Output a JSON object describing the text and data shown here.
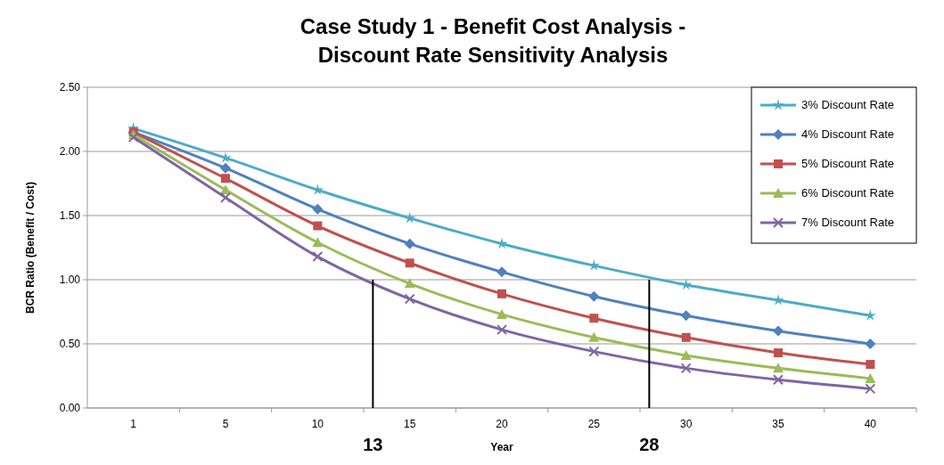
{
  "chart_data": {
    "type": "line",
    "title": "Case Study 1 - Benefit Cost Analysis -\nDiscount Rate Sensitivity Analysis",
    "xlabel": "Year",
    "ylabel": "BCR Ratio (Benefit / Cost)",
    "categories": [
      "1",
      "5",
      "10",
      "15",
      "20",
      "25",
      "30",
      "35",
      "40"
    ],
    "ylim": [
      0,
      2.5
    ],
    "yticks": [
      {
        "value": 0,
        "label": "0.00"
      },
      {
        "value": 0.5,
        "label": "0.50"
      },
      {
        "value": 1,
        "label": "1.00"
      },
      {
        "value": 1.5,
        "label": "1.50"
      },
      {
        "value": 2,
        "label": "2.00"
      },
      {
        "value": 2.5,
        "label": "2.50"
      }
    ],
    "grid": "y",
    "legend": "top right",
    "series": [
      {
        "name": "3% Discount Rate",
        "color": "#4bacc6",
        "marker": "star",
        "values": [
          2.18,
          1.95,
          1.7,
          1.48,
          1.28,
          1.11,
          0.96,
          0.84,
          0.72
        ]
      },
      {
        "name": "4% Discount Rate",
        "color": "#4f81bd",
        "marker": "diamond",
        "values": [
          2.15,
          1.87,
          1.55,
          1.28,
          1.06,
          0.87,
          0.72,
          0.6,
          0.5
        ]
      },
      {
        "name": "5% Discount Rate",
        "color": "#c0504d",
        "marker": "square",
        "values": [
          2.15,
          1.79,
          1.42,
          1.13,
          0.89,
          0.7,
          0.55,
          0.43,
          0.34
        ]
      },
      {
        "name": "6% Discount Rate",
        "color": "#9bbb59",
        "marker": "triangle",
        "values": [
          2.13,
          1.7,
          1.29,
          0.97,
          0.73,
          0.55,
          0.41,
          0.31,
          0.23
        ]
      },
      {
        "name": "7% Discount Rate",
        "color": "#8064a2",
        "marker": "cross",
        "values": [
          2.11,
          1.64,
          1.18,
          0.85,
          0.61,
          0.44,
          0.31,
          0.22,
          0.15
        ]
      }
    ],
    "annotations": [
      "13",
      "28"
    ]
  }
}
